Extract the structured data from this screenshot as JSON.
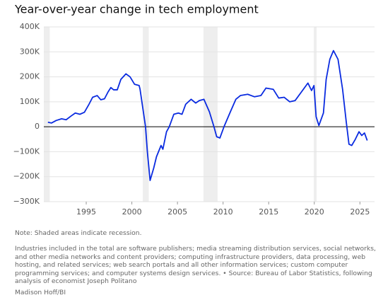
{
  "chart_data": {
    "type": "line",
    "title": "Year-over-year change in tech employment",
    "color": "#0a2be0",
    "x": [
      1990.8,
      1991.2,
      1991.7,
      1992.3,
      1992.8,
      1993.3,
      1993.8,
      1994.3,
      1994.8,
      1995.3,
      1995.7,
      1996.2,
      1996.6,
      1997.0,
      1997.4,
      1997.7,
      1998.0,
      1998.4,
      1998.8,
      1999.35,
      1999.8,
      2000.3,
      2000.8,
      2000.9,
      2001.5,
      2001.7,
      2002.0,
      2002.4,
      2002.7,
      2003.2,
      2003.4,
      2003.8,
      2004.1,
      2004.6,
      2005.1,
      2005.5,
      2005.9,
      2006.5,
      2007.0,
      2007.4,
      2007.9,
      2008.5,
      2009.0,
      2009.3,
      2009.65,
      2010.1,
      2010.8,
      2011.4,
      2011.9,
      2012.7,
      2013.45,
      2014.15,
      2014.7,
      2015.5,
      2016.1,
      2016.7,
      2017.3,
      2017.9,
      2018.6,
      2019.3,
      2019.7,
      2019.96,
      2020.2,
      2020.5,
      2021.0,
      2021.3,
      2021.7,
      2022.1,
      2022.6,
      2023.1,
      2023.5,
      2023.8,
      2024.1,
      2024.5,
      2024.9,
      2025.2,
      2025.5,
      2025.8
    ],
    "values": [
      18000,
      15000,
      25000,
      32000,
      28000,
      42000,
      55000,
      50000,
      58000,
      90000,
      118000,
      125000,
      108000,
      112000,
      140000,
      157000,
      148000,
      148000,
      190000,
      212000,
      200000,
      170000,
      165000,
      150000,
      0,
      -100000,
      -215000,
      -165000,
      -120000,
      -75000,
      -90000,
      -20000,
      0,
      50000,
      55000,
      50000,
      90000,
      110000,
      95000,
      105000,
      110000,
      60000,
      0,
      -40000,
      -45000,
      0,
      60000,
      110000,
      125000,
      130000,
      120000,
      125000,
      155000,
      150000,
      115000,
      118000,
      100000,
      105000,
      140000,
      175000,
      145000,
      165000,
      40000,
      5000,
      55000,
      190000,
      270000,
      305000,
      270000,
      150000,
      20000,
      -70000,
      -75000,
      -50000,
      -20000,
      -35000,
      -25000,
      -55000
    ],
    "recessions": [
      [
        1990.35,
        1991.0
      ],
      [
        2001.2,
        2001.85
      ],
      [
        2007.85,
        2009.4
      ],
      [
        2019.95,
        2020.25
      ]
    ],
    "xlim": [
      1990.35,
      2026.6
    ],
    "xticks": [
      1995,
      2000,
      2005,
      2010,
      2015,
      2020,
      2025
    ],
    "ylim": [
      -300000,
      400000
    ],
    "yticks": [
      {
        "value": -300000,
        "label": "−300K"
      },
      {
        "value": -200000,
        "label": "−200K"
      },
      {
        "value": -100000,
        "label": "−100K"
      },
      0,
      {
        "value": 100000,
        "label": "100K"
      },
      {
        "value": 200000,
        "label": "200K"
      },
      {
        "value": 300000,
        "label": "300K"
      },
      {
        "value": 400000,
        "label": "400K"
      }
    ],
    "grid": true
  },
  "notes": {
    "note": "Note: Shaded areas indicate recession.",
    "description": "Industries included in the total are software publishers; media streaming distribution services, social networks, and other media networks and content providers; computing infrastructure providers, data processing, web hosting, and related services; web search portals and all other information services; custom computer programming services; and computer systems design services. • Source: Bureau of Labor Statistics, following analysis of economist Joseph Politano",
    "credit": "Madison Hoff/BI"
  }
}
